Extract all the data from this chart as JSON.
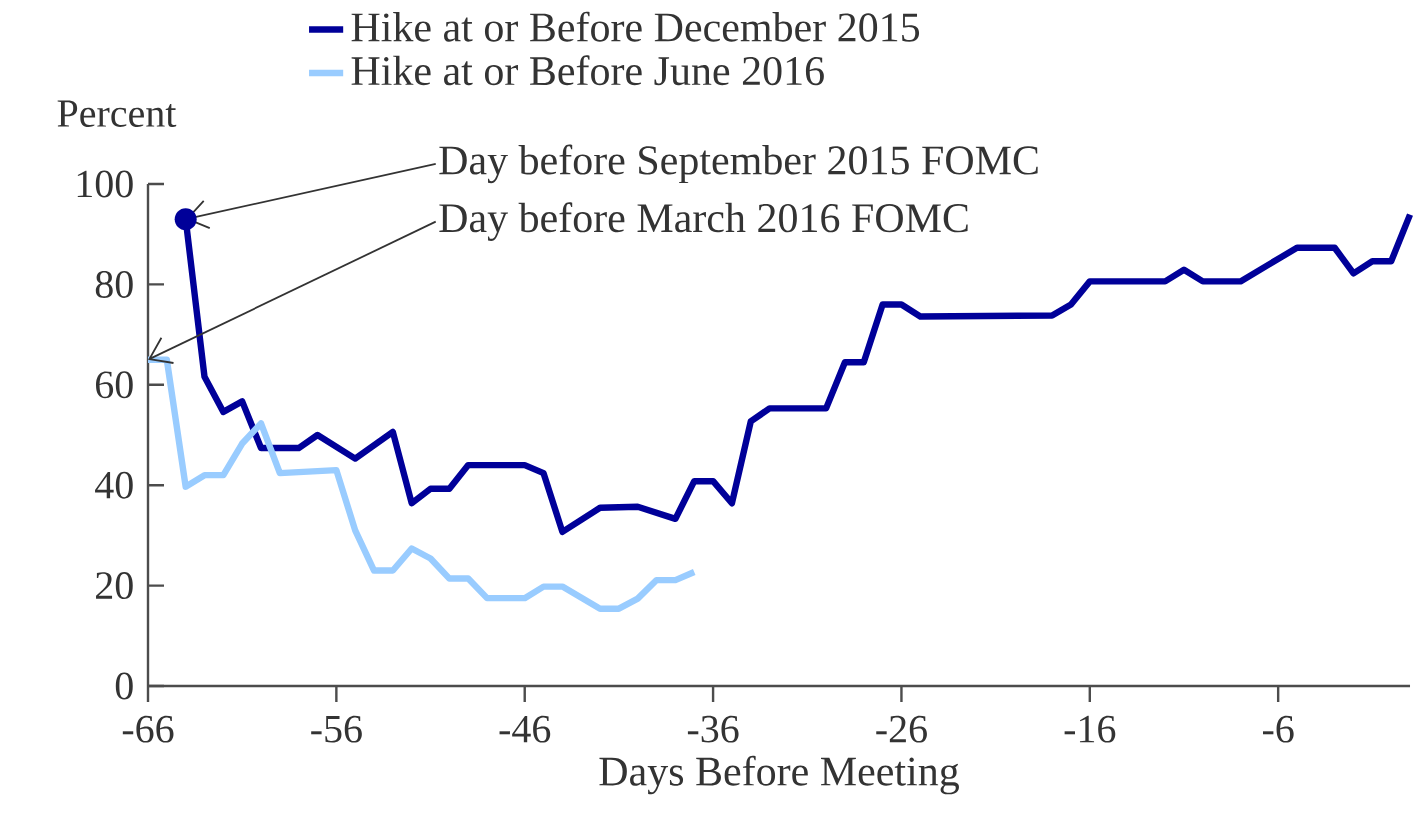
{
  "chart_data": {
    "type": "line",
    "xlabel": "Days Before Meeting",
    "ylabel": "Percent",
    "xlim": [
      -66,
      1
    ],
    "ylim": [
      0,
      100
    ],
    "xticks": [
      -66,
      -56,
      -46,
      -36,
      -26,
      -16,
      -6
    ],
    "yticks": [
      0,
      20,
      40,
      60,
      80,
      100
    ],
    "legend": "top",
    "grid": false,
    "line_style": "solid",
    "series": [
      {
        "name": "Hike at or Before December 2015",
        "color": "#000099",
        "x": [
          -64,
          -63,
          -62,
          -61,
          -60,
          -58,
          -57,
          -55,
          -53,
          -52,
          -51,
          -50,
          -49,
          -46,
          -45,
          -44,
          -42,
          -40,
          -38,
          -37,
          -36,
          -35,
          -34,
          -33,
          -30,
          -29,
          -28,
          -27,
          -26,
          -25,
          -18,
          -17,
          -16,
          -12,
          -11,
          -10,
          -8,
          -5,
          -3,
          -2,
          -1,
          0,
          1
        ],
        "values": [
          93,
          61.6,
          54.6,
          56.7,
          47.4,
          47.4,
          50,
          45.3,
          50.6,
          36.4,
          39.3,
          39.3,
          44,
          44,
          42.4,
          30.7,
          35.5,
          35.7,
          33.3,
          40.8,
          40.8,
          36.4,
          52.7,
          55.3,
          55.3,
          64.5,
          64.5,
          76,
          76,
          73.6,
          73.8,
          76,
          80.6,
          80.6,
          82.9,
          80.6,
          80.6,
          87.3,
          87.3,
          82.2,
          84.6,
          84.6,
          93.9
        ]
      },
      {
        "name": "Hike at or Before June 2016",
        "color": "#99ccff",
        "x": [
          -66,
          -65,
          -64,
          -63,
          -62,
          -61,
          -60,
          -59,
          -56,
          -55,
          -54,
          -53,
          -52,
          -51,
          -50,
          -49,
          -48,
          -46,
          -45,
          -44,
          -42,
          -41,
          -40,
          -39,
          -38,
          -37
        ],
        "values": [
          65,
          65,
          39.7,
          42,
          42,
          48.3,
          52.3,
          42.4,
          43,
          31,
          23,
          23,
          27.4,
          25.4,
          21.4,
          21.4,
          17.5,
          17.5,
          19.8,
          19.8,
          15.4,
          15.4,
          17.4,
          21.1,
          21.1,
          22.7
        ]
      }
    ],
    "annotations": [
      {
        "text": "Day before September 2015 FOMC",
        "x": -64,
        "y": 93
      },
      {
        "text": "Day before March 2016 FOMC",
        "x": -66,
        "y": 65
      }
    ]
  }
}
